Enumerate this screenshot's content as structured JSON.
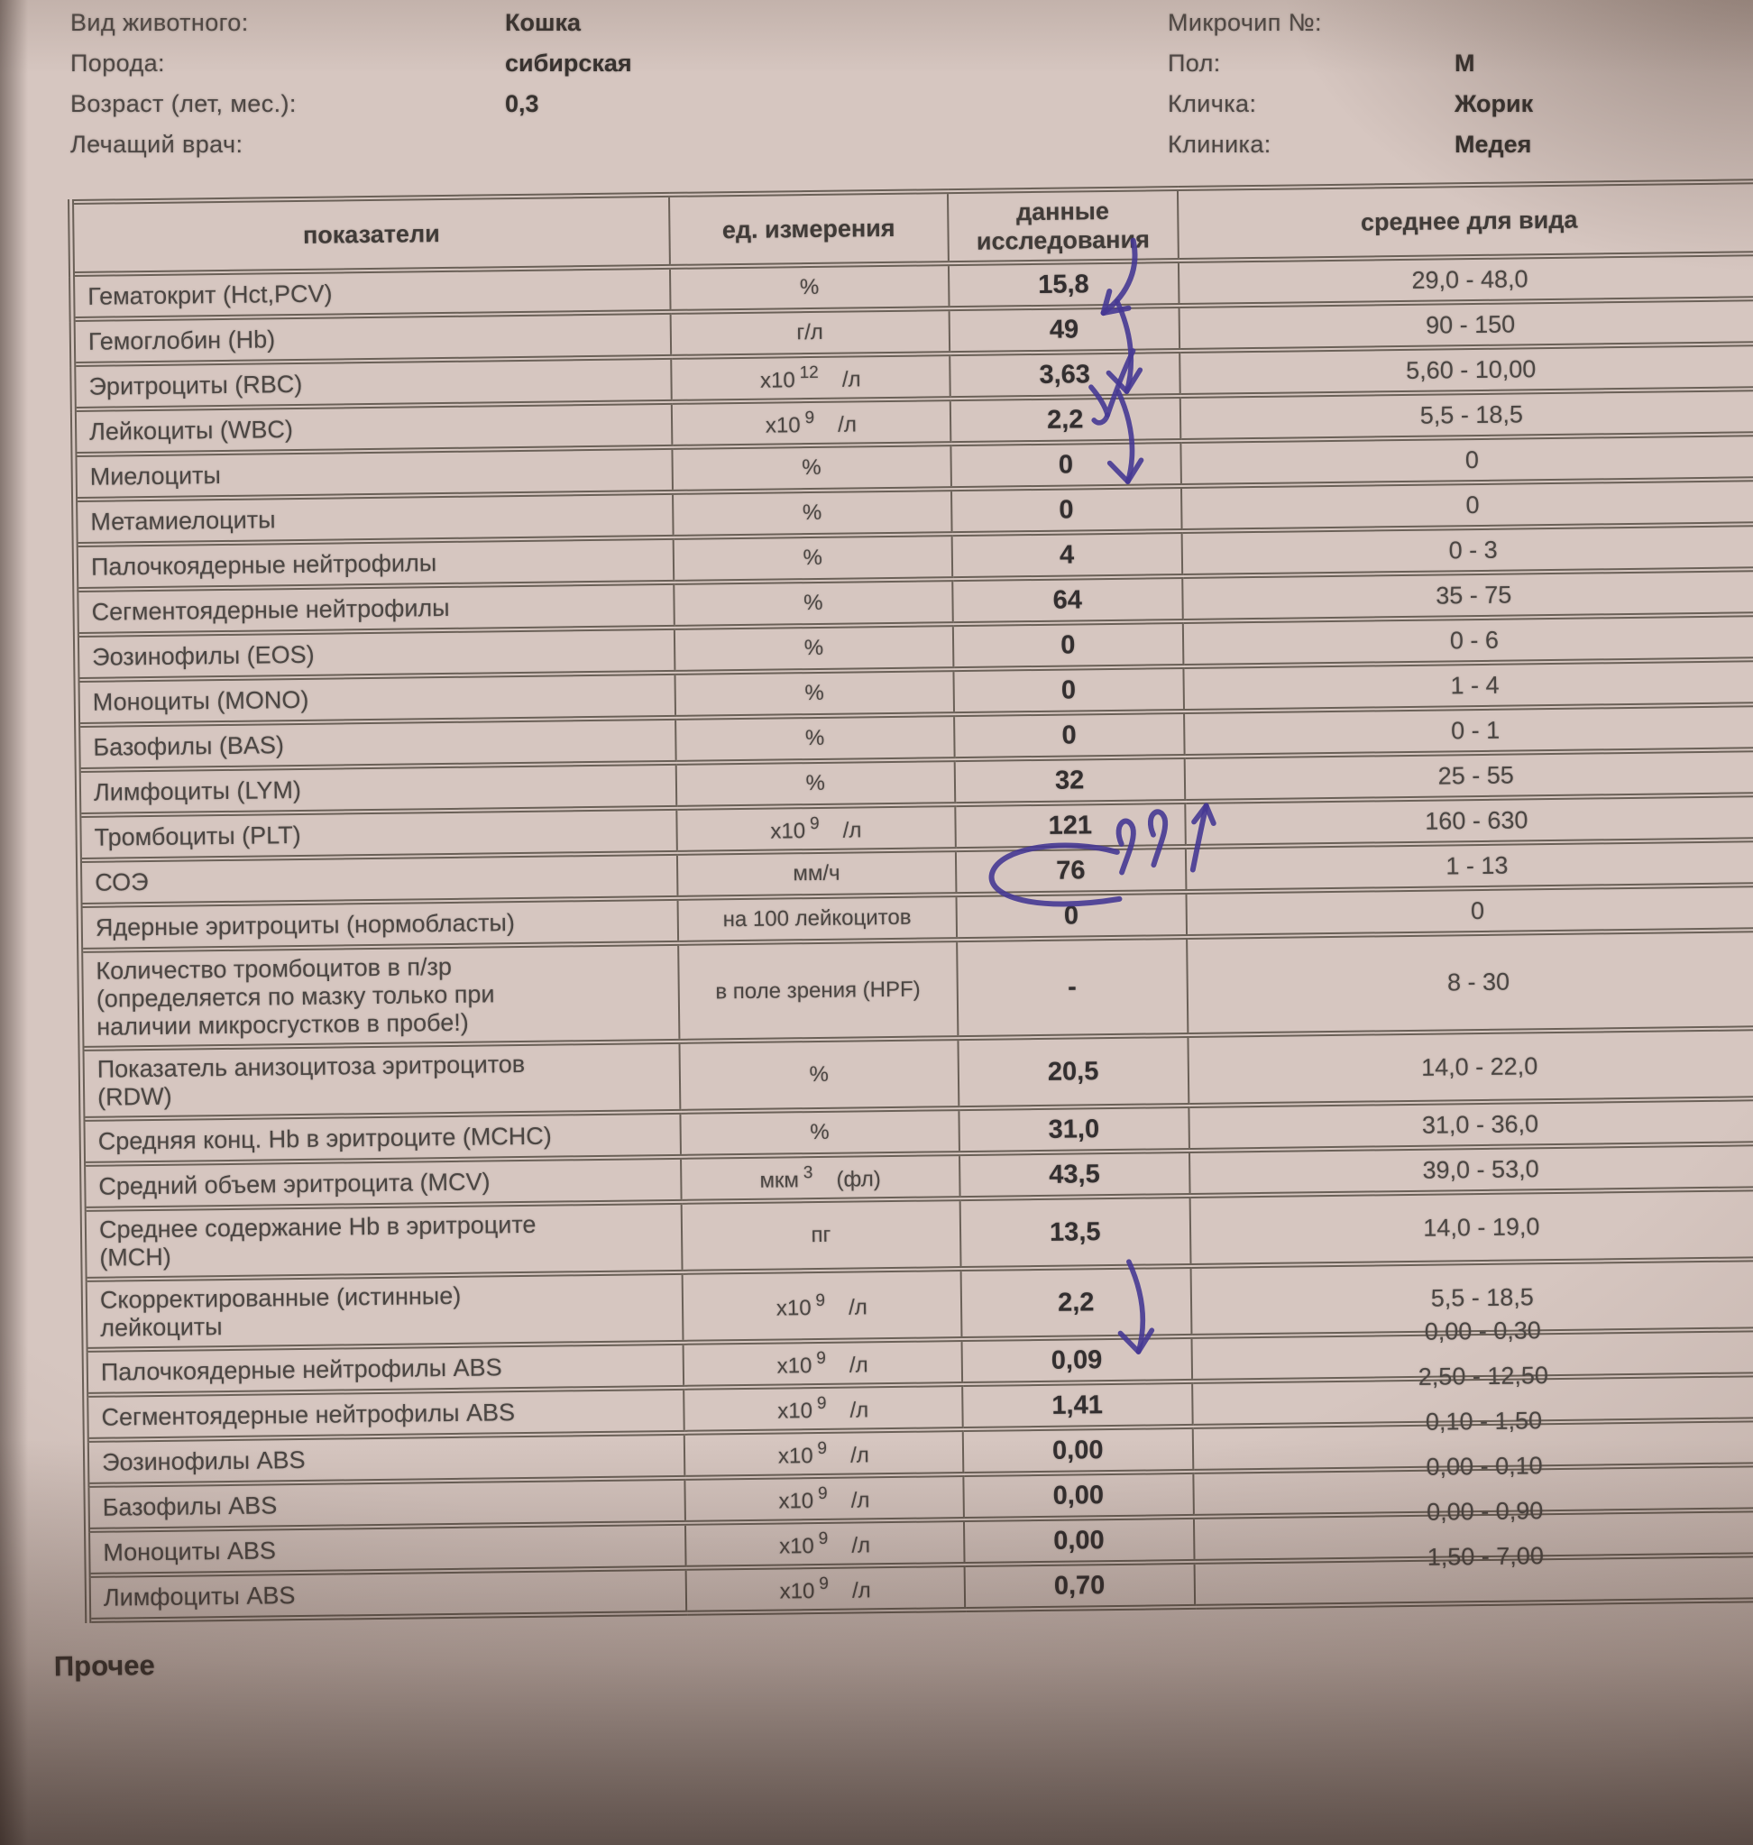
{
  "meta": {
    "left": [
      {
        "label": "Вид животного:",
        "value": "Кошка"
      },
      {
        "label": "Порода:",
        "value": "сибирская"
      },
      {
        "label": "Возраст (лет, мес.):",
        "value": "0,3"
      },
      {
        "label": "Лечащий врач:",
        "value": ""
      }
    ],
    "right": [
      {
        "label": "Микрочип №:",
        "value": ""
      },
      {
        "label": "Пол:",
        "value": "М"
      },
      {
        "label": "Кличка:",
        "value": "Жорик"
      },
      {
        "label": "Клиника:",
        "value": "Медея"
      }
    ]
  },
  "table": {
    "headers": [
      "показатели",
      "ед. измерения",
      "данные\nисследования",
      "среднее для вида"
    ],
    "rows": [
      {
        "name": "Гематокрит (Hct,PCV)",
        "unit_base": "%",
        "value": "15,8",
        "range": "29,0 - 48,0",
        "mark": "pen-arrow-hook"
      },
      {
        "name": "Гемоглобин (Hb)",
        "unit_base": "г/л",
        "value": "49",
        "range": "90 - 150",
        "mark": "pen-arrow-down"
      },
      {
        "name": "Эритроциты (RBC)",
        "unit_base": "x10",
        "unit_exp": "12",
        "unit_tail": "/л",
        "value": "3,63",
        "range": "5,60 - 10,00",
        "mark": "pen-check"
      },
      {
        "name": "Лейкоциты (WBC)",
        "unit_base": "x10",
        "unit_exp": "9",
        "unit_tail": "/л",
        "value": "2,2",
        "range": "5,5 - 18,5",
        "mark": "pen-arrow-down"
      },
      {
        "name": "Миелоциты",
        "unit_base": "%",
        "value": "0",
        "range": "0"
      },
      {
        "name": "Метамиелоциты",
        "unit_base": "%",
        "value": "0",
        "range": "0"
      },
      {
        "name": "Палочкоядерные нейтрофилы",
        "unit_base": "%",
        "value": "4",
        "range": "0 - 3"
      },
      {
        "name": "Сегментоядерные нейтрофилы",
        "unit_base": "%",
        "value": "64",
        "range": "35 - 75"
      },
      {
        "name": "Эозинофилы (EOS)",
        "unit_base": "%",
        "value": "0",
        "range": "0 - 6"
      },
      {
        "name": "Моноциты (MONO)",
        "unit_base": "%",
        "value": "0",
        "range": "1 - 4"
      },
      {
        "name": "Базофилы (BAS)",
        "unit_base": "%",
        "value": "0",
        "range": "0 - 1"
      },
      {
        "name": "Лимфоциты (LYM)",
        "unit_base": "%",
        "value": "32",
        "range": "25 - 55"
      },
      {
        "name": "Тромбоциты (PLT)",
        "unit_base": "x10",
        "unit_exp": "9",
        "unit_tail": "/л",
        "value": "121",
        "range": "160 - 630",
        "mark": "pen-scribble-up"
      },
      {
        "name": "СОЭ",
        "unit_base": "мм/ч",
        "value": "76",
        "range": "1 - 13",
        "mark": "pen-circle"
      },
      {
        "name": "Ядерные эритроциты (нормобласты)",
        "unit_base": "на 100 лейкоцитов",
        "value": "0",
        "range": "0"
      },
      {
        "name": "Количество тромбоцитов в п/зр\n(определяется по мазку только при\nналичии микросгустков в пробе!)",
        "unit_base": "в поле зрения (HPF)",
        "value": "-",
        "range": "8 - 30"
      },
      {
        "name": "Показатель анизоцитоза эритроцитов\n(RDW)",
        "unit_base": "%",
        "value": "20,5",
        "range": "14,0 - 22,0"
      },
      {
        "name": "Средняя конц. Hb в эритроците (MCHC)",
        "unit_base": "%",
        "value": "31,0",
        "range": "31,0 - 36,0"
      },
      {
        "name": "Средний объем эритроцита (MCV)",
        "unit_base": "мкм",
        "unit_exp": "3",
        "unit_tail": "(фл)",
        "value": "43,5",
        "range": "39,0 - 53,0"
      },
      {
        "name": "Среднее содержание Hb в эритроците\n(MCH)",
        "unit_base": "пг",
        "value": "13,5",
        "range": "14,0 - 19,0"
      },
      {
        "name": "Скорректированные (истинные)\nлейкоциты",
        "unit_base": "x10",
        "unit_exp": "9",
        "unit_tail": "/л",
        "value": "2,2",
        "range": "5,5 - 18,5",
        "mark": "pen-arrow-down"
      },
      {
        "name": "Палочкоядерные нейтрофилы ABS",
        "unit_base": "x10",
        "unit_exp": "9",
        "unit_tail": "/л",
        "value": "0,09",
        "range": "0,00 - 0,30",
        "range_up": true
      },
      {
        "name": "Сегментоядерные нейтрофилы ABS",
        "unit_base": "x10",
        "unit_exp": "9",
        "unit_tail": "/л",
        "value": "1,41",
        "range": "2,50 - 12,50",
        "range_up": true
      },
      {
        "name": "Эозинофилы ABS",
        "unit_base": "x10",
        "unit_exp": "9",
        "unit_tail": "/л",
        "value": "0,00",
        "range": "0,10 - 1,50",
        "range_up": true
      },
      {
        "name": "Базофилы ABS",
        "unit_base": "x10",
        "unit_exp": "9",
        "unit_tail": "/л",
        "value": "0,00",
        "range": "0,00 - 0,10",
        "range_up": true
      },
      {
        "name": "Моноциты ABS",
        "unit_base": "x10",
        "unit_exp": "9",
        "unit_tail": "/л",
        "value": "0,00",
        "range": "0,00 - 0,90",
        "range_up": true
      },
      {
        "name": "Лимфоциты ABS",
        "unit_base": "x10",
        "unit_exp": "9",
        "unit_tail": "/л",
        "value": "0,70",
        "range": "1,50 - 7,00",
        "range_up": true
      }
    ]
  },
  "footer": {
    "other_label": "Прочее"
  },
  "ink_color": "#463994",
  "paper_color": "#d6c6c0"
}
